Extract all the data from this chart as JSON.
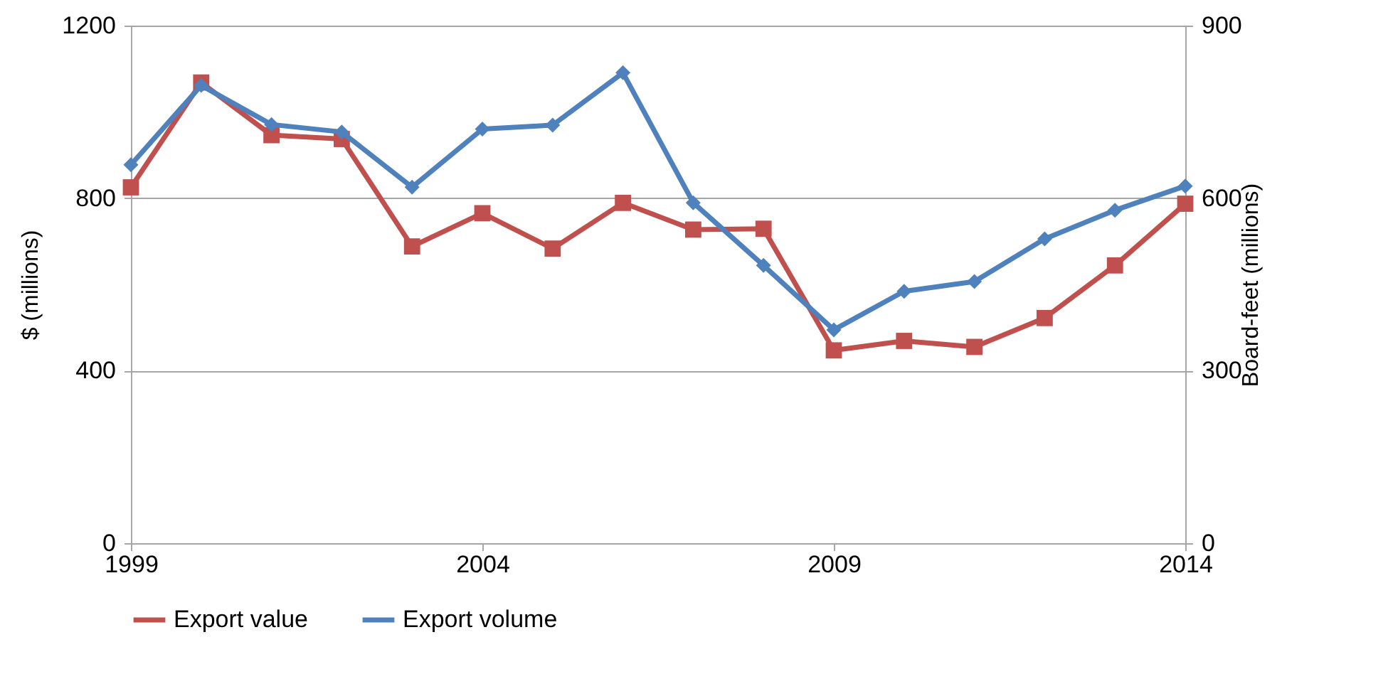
{
  "chart_data": {
    "type": "line",
    "x": [
      1999,
      2000,
      2001,
      2002,
      2003,
      2004,
      2005,
      2006,
      2007,
      2008,
      2009,
      2010,
      2011,
      2012,
      2013,
      2014
    ],
    "xlim": [
      1999,
      2014
    ],
    "xticks": [
      1999,
      2004,
      2009,
      2014
    ],
    "ylim": [
      0,
      1200
    ],
    "yticks": [
      0,
      400,
      800,
      1200
    ],
    "y2lim": [
      0,
      900
    ],
    "y2ticks": [
      0,
      300,
      600,
      900
    ],
    "ylabel": "$ (millions)",
    "y2label": "Board-feet (millions)",
    "grid": "y",
    "legend": "bottom",
    "line_style": "solid",
    "series": [
      {
        "name": "Export value",
        "color": "#c0504d",
        "marker": "square",
        "values": [
          825,
          1068,
          946,
          937,
          688,
          765,
          683,
          789,
          727,
          729,
          447,
          469,
          455,
          522,
          644,
          787
        ]
      },
      {
        "name": "Export volume",
        "color": "#4f81bd",
        "marker": "diamond",
        "axis": "y2",
        "values": [
          658,
          796,
          728,
          715,
          619,
          720,
          727,
          818,
          592,
          483,
          371,
          438,
          455,
          529,
          579,
          621
        ]
      }
    ]
  }
}
